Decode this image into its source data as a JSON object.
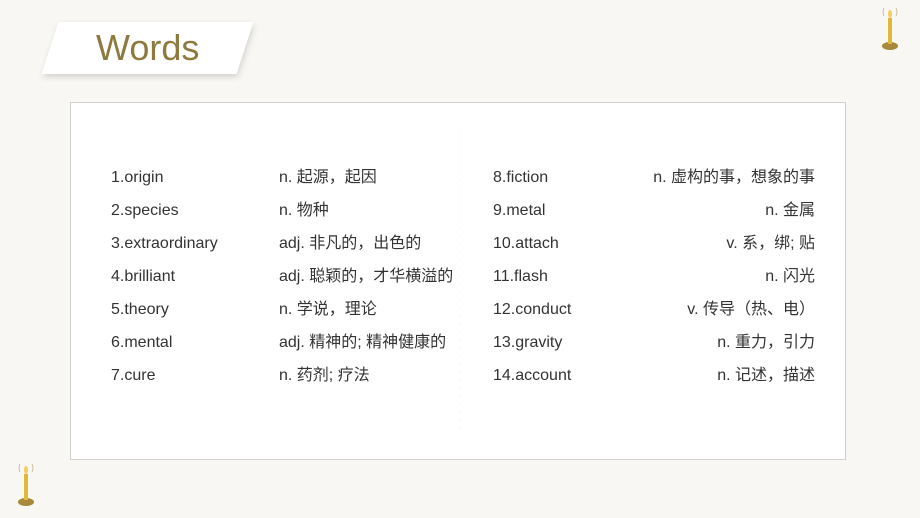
{
  "title": "Words",
  "colors": {
    "background": "#f8f7f3",
    "title_color": "#8d7a3e",
    "text_color": "#333333",
    "box_bg": "#ffffff",
    "box_border": "#d0d0d0",
    "divider_color": "#777777",
    "candle_body": "#e0b83a",
    "candle_holder": "#a68a3a"
  },
  "typography": {
    "title_fontsize": 36,
    "body_fontsize": 16
  },
  "words_left": [
    {
      "num": "1.",
      "term": "origin",
      "def": "n. 起源，起因"
    },
    {
      "num": "2.",
      "term": "species",
      "def": "n. 物种"
    },
    {
      "num": "3.",
      "term": "extraordinary",
      "def": "adj. 非凡的，出色的"
    },
    {
      "num": "4.",
      "term": "brilliant",
      "def": "adj. 聪颖的，才华横溢的"
    },
    {
      "num": "5.",
      "term": "theory",
      "def": "n. 学说，理论"
    },
    {
      "num": "6.",
      "term": "mental",
      "def": "adj. 精神的; 精神健康的"
    },
    {
      "num": "7.",
      "term": "cure",
      "def": "n. 药剂; 疗法"
    }
  ],
  "words_right": [
    {
      "num": "8.",
      "term": "fiction",
      "def": "n. 虚构的事，想象的事"
    },
    {
      "num": "9.",
      "term": "metal",
      "def": "n. 金属"
    },
    {
      "num": "10.",
      "term": "attach",
      "def": "v. 系，绑; 贴"
    },
    {
      "num": "11.",
      "term": "flash",
      "def": "n. 闪光"
    },
    {
      "num": "12.",
      "term": "conduct",
      "def": "v. 传导（热、电）"
    },
    {
      "num": "13.",
      "term": "gravity",
      "def": "n. 重力，引力"
    },
    {
      "num": "14.",
      "term": "account",
      "def": "n. 记述，描述"
    }
  ]
}
